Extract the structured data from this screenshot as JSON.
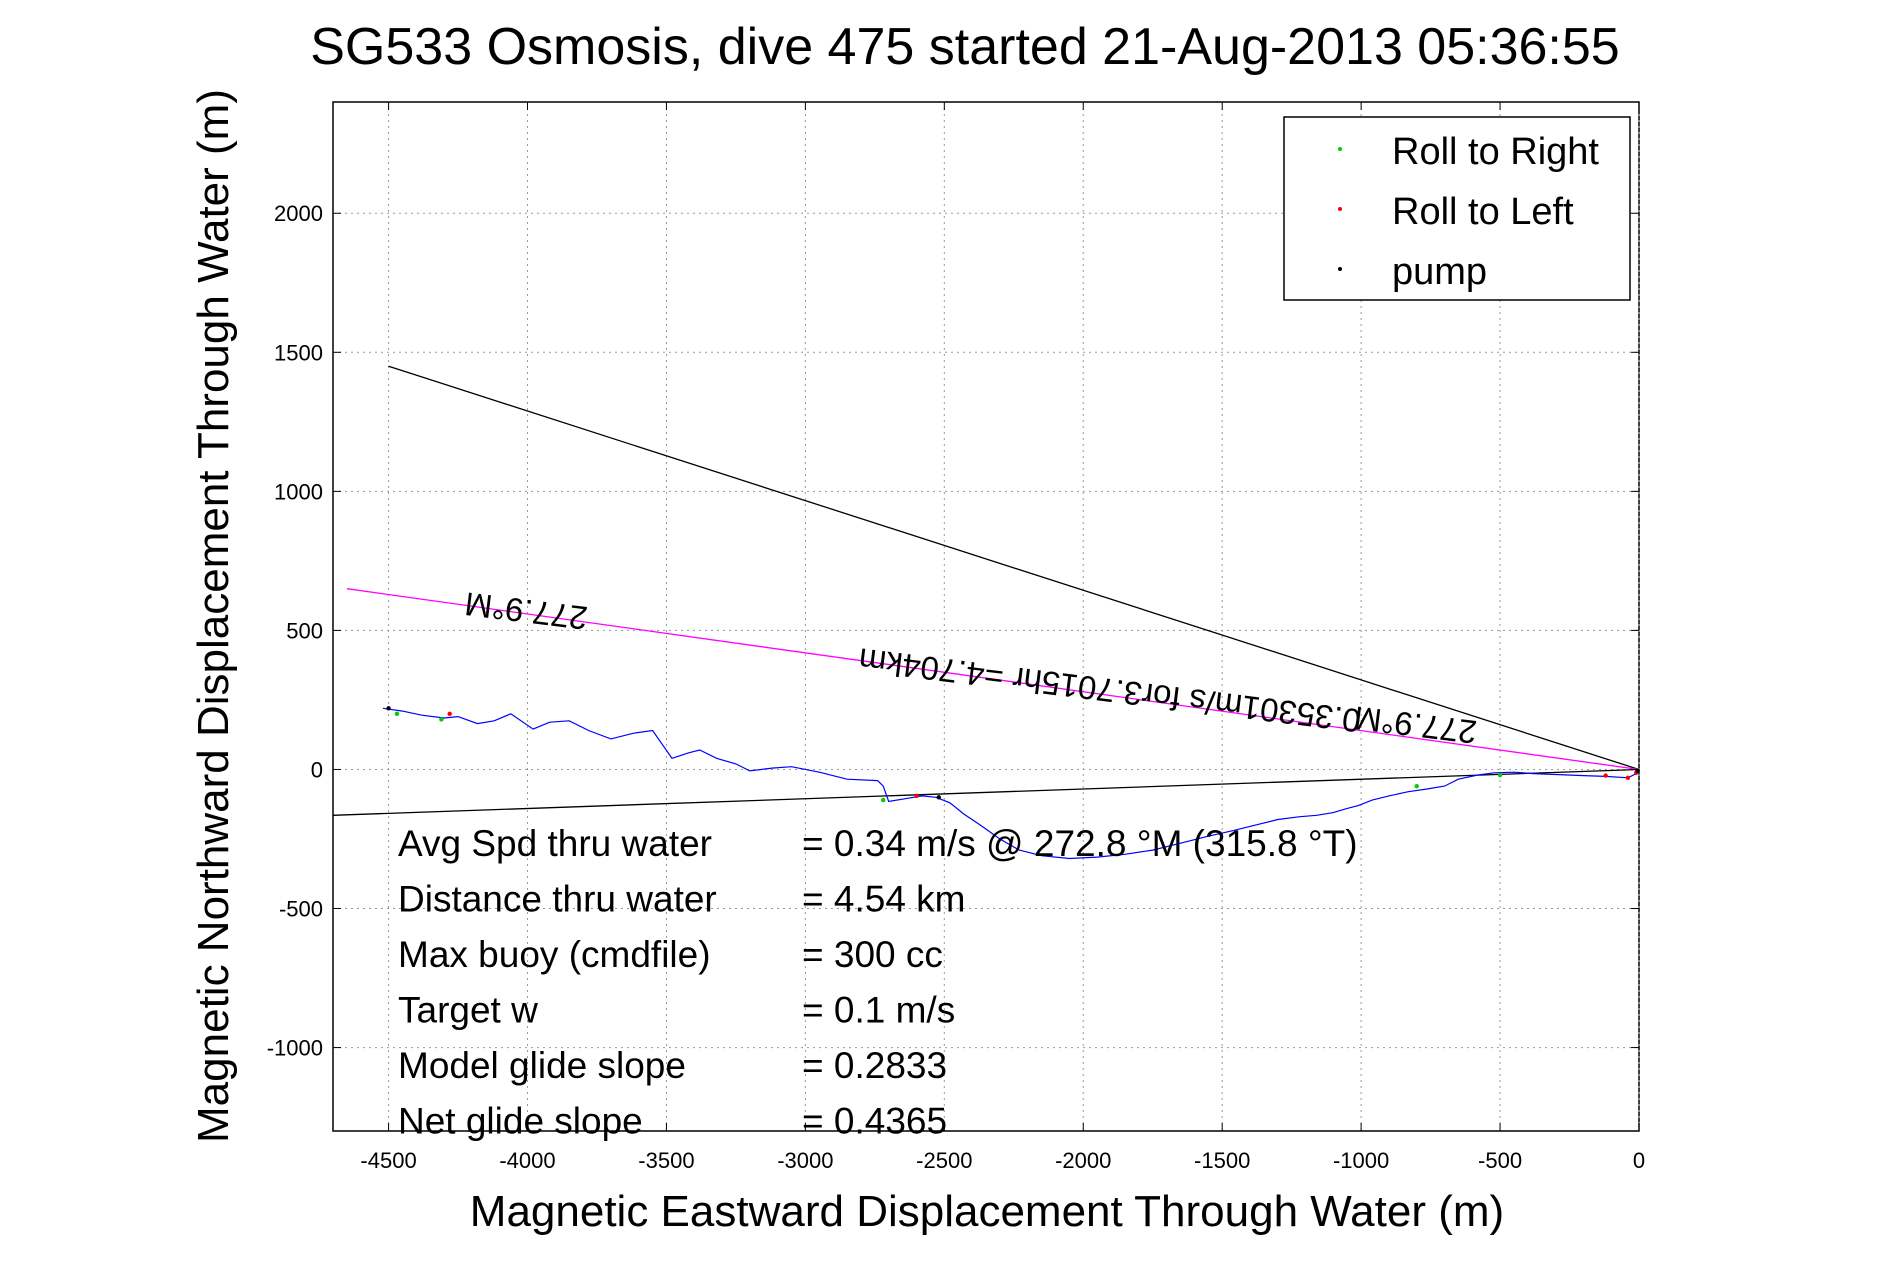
{
  "chart_data": {
    "type": "scatter",
    "title": "SG533 Osmosis, dive 475 started 21-Aug-2013 05:36:55",
    "xlabel": "Magnetic Eastward Displacement Through Water (m)",
    "ylabel": "Magnetic Northward Displacement Through Water (m)",
    "xlim": [
      -4700,
      0
    ],
    "ylim": [
      -1300,
      2400
    ],
    "grid": true,
    "legend_position": "top-right",
    "x_ticks": [
      -4500,
      -4000,
      -3500,
      -3000,
      -2500,
      -2000,
      -1500,
      -1000,
      -500,
      0
    ],
    "y_ticks": [
      -1000,
      -500,
      0,
      500,
      1000,
      1500,
      2000
    ],
    "legend": [
      {
        "label": "Roll to Right",
        "color": "#00cc00"
      },
      {
        "label": "Roll to Left",
        "color": "#ff0000"
      },
      {
        "label": "pump",
        "color": "#000000"
      }
    ],
    "series": [
      {
        "color": "#0000ff",
        "points": [
          [
            0,
            0
          ],
          [
            -10,
            -15
          ],
          [
            -40,
            -30
          ],
          [
            -120,
            -25
          ],
          [
            -200,
            -22
          ],
          [
            -300,
            -18
          ],
          [
            -380,
            -15
          ],
          [
            -450,
            -10
          ],
          [
            -520,
            -12
          ],
          [
            -580,
            -20
          ],
          [
            -650,
            -35
          ],
          [
            -700,
            -60
          ],
          [
            -760,
            -70
          ],
          [
            -830,
            -80
          ],
          [
            -900,
            -95
          ],
          [
            -960,
            -110
          ],
          [
            -1010,
            -130
          ],
          [
            -1050,
            -140
          ],
          [
            -1100,
            -155
          ],
          [
            -1160,
            -165
          ],
          [
            -1220,
            -170
          ],
          [
            -1300,
            -180
          ],
          [
            -1380,
            -200
          ],
          [
            -1460,
            -220
          ],
          [
            -1550,
            -240
          ],
          [
            -1650,
            -265
          ],
          [
            -1750,
            -290
          ],
          [
            -1850,
            -305
          ],
          [
            -1950,
            -315
          ],
          [
            -2050,
            -320
          ],
          [
            -2150,
            -310
          ],
          [
            -2230,
            -290
          ],
          [
            -2300,
            -250
          ],
          [
            -2370,
            -200
          ],
          [
            -2430,
            -160
          ],
          [
            -2480,
            -120
          ],
          [
            -2530,
            -100
          ],
          [
            -2580,
            -95
          ],
          [
            -2640,
            -105
          ],
          [
            -2700,
            -115
          ],
          [
            -2720,
            -60
          ],
          [
            -2740,
            -40
          ],
          [
            -2850,
            -35
          ],
          [
            -2950,
            -10
          ],
          [
            -3050,
            10
          ],
          [
            -3120,
            5
          ],
          [
            -3200,
            -5
          ],
          [
            -3250,
            20
          ],
          [
            -3320,
            40
          ],
          [
            -3380,
            70
          ],
          [
            -3420,
            60
          ],
          [
            -3480,
            40
          ],
          [
            -3550,
            140
          ],
          [
            -3620,
            130
          ],
          [
            -3700,
            110
          ],
          [
            -3780,
            140
          ],
          [
            -3850,
            175
          ],
          [
            -3920,
            170
          ],
          [
            -3980,
            145
          ],
          [
            -4060,
            200
          ],
          [
            -4120,
            175
          ],
          [
            -4180,
            165
          ],
          [
            -4250,
            190
          ],
          [
            -4300,
            185
          ],
          [
            -4380,
            195
          ],
          [
            -4450,
            210
          ],
          [
            -4520,
            220
          ]
        ]
      },
      {
        "name": "Roll to Right",
        "color": "#00cc00",
        "points": [
          [
            -4470,
            200
          ],
          [
            -4310,
            180
          ],
          [
            -2720,
            -110
          ],
          [
            -800,
            -60
          ],
          [
            -500,
            -20
          ]
        ]
      },
      {
        "name": "Roll to Left",
        "color": "#ff0000",
        "points": [
          [
            -4280,
            200
          ],
          [
            -2600,
            -95
          ],
          [
            -40,
            -30
          ],
          [
            -10,
            -12
          ],
          [
            -120,
            -22
          ]
        ]
      },
      {
        "name": "pump",
        "color": "#000000",
        "points": [
          [
            -4500,
            220
          ],
          [
            -2520,
            -100
          ],
          [
            -5,
            -5
          ]
        ]
      }
    ],
    "reference_lines": [
      {
        "color": "#000000",
        "points": [
          [
            -4500,
            1450
          ],
          [
            0,
            0
          ]
        ]
      },
      {
        "color": "#000000",
        "points": [
          [
            -4700,
            -165
          ],
          [
            0,
            0
          ]
        ]
      },
      {
        "color": "#ff00ff",
        "points": [
          [
            -4650,
            650
          ],
          [
            0,
            0
          ]
        ]
      }
    ],
    "annotations": [
      {
        "text": "277.9°M",
        "x": -4000,
        "y": 610,
        "rotation": 187
      },
      {
        "text": "277.9°M",
        "x": -800,
        "y": 200,
        "rotation": 187
      },
      {
        "text": "0.35301m/s for3.7015hr =4.704km",
        "x": -1900,
        "y": 325,
        "rotation": 187
      }
    ],
    "stats": [
      {
        "label": "Avg Spd thru water",
        "value": "=  0.34 m/s @ 272.8  °M (315.8 °T)"
      },
      {
        "label": "Distance thru water",
        "value": "=  4.54 km"
      },
      {
        "label": "Max buoy (cmdfile)",
        "value": "= 300 cc"
      },
      {
        "label": "Target w",
        "value": "= 0.1 m/s"
      },
      {
        "label": "Model glide slope",
        "value": "= 0.2833"
      },
      {
        "label": "Net glide slope",
        "value": "= 0.4365"
      }
    ]
  }
}
